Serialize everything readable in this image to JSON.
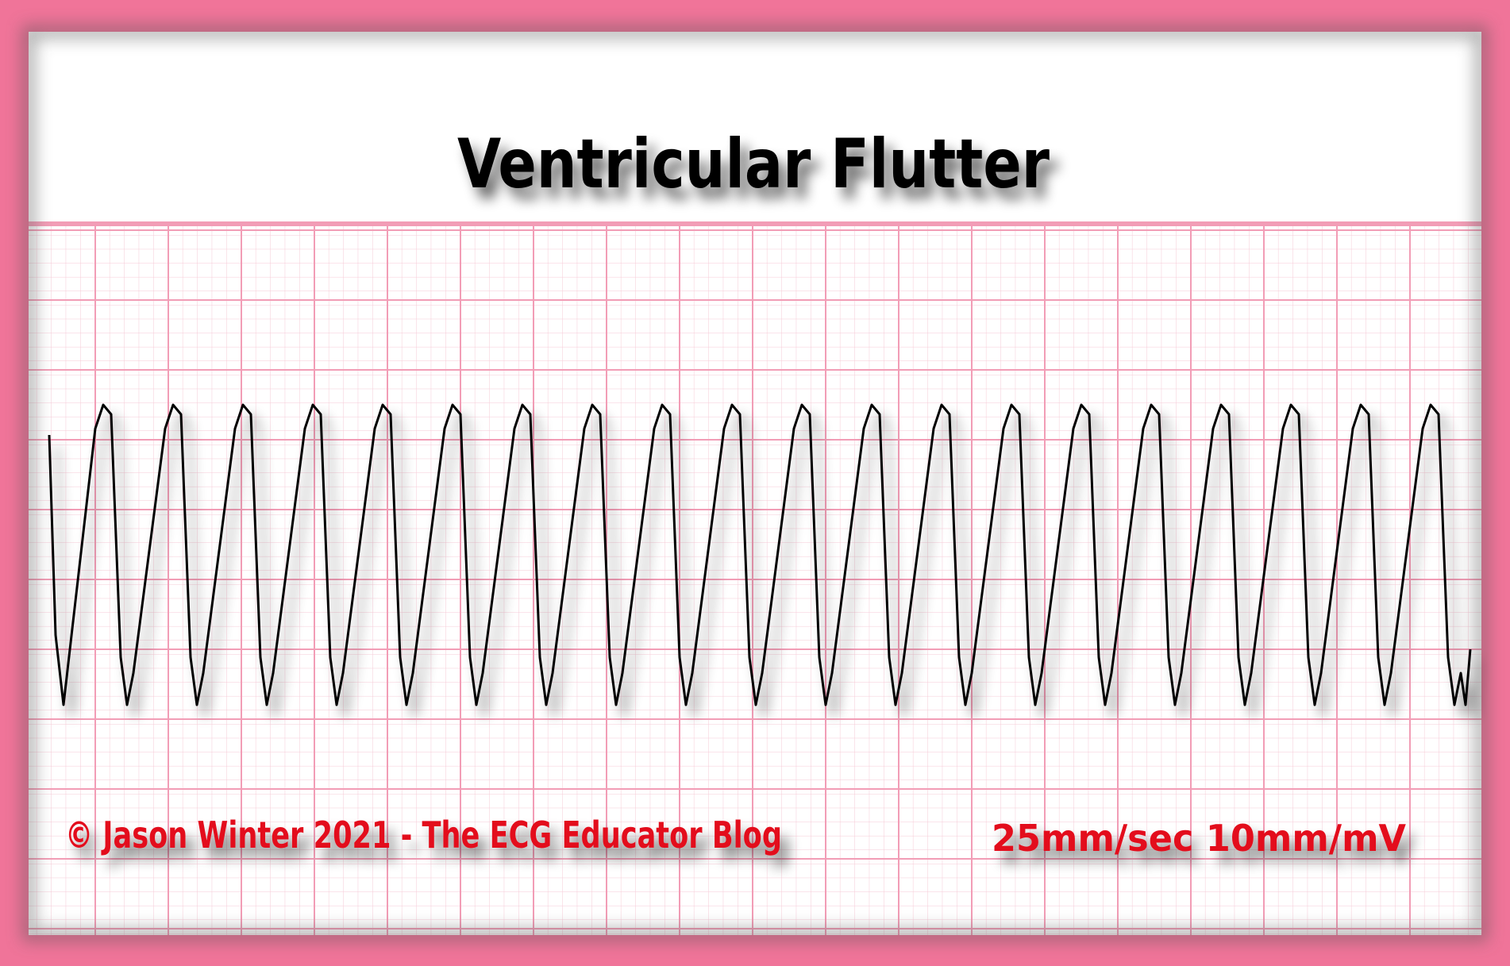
{
  "header": {
    "title": "Ventricular Flutter"
  },
  "footer": {
    "copyright": "© Jason Winter 2021 - The ECG Educator Blog",
    "settings": "25mm/sec 10mm/mV"
  }
}
